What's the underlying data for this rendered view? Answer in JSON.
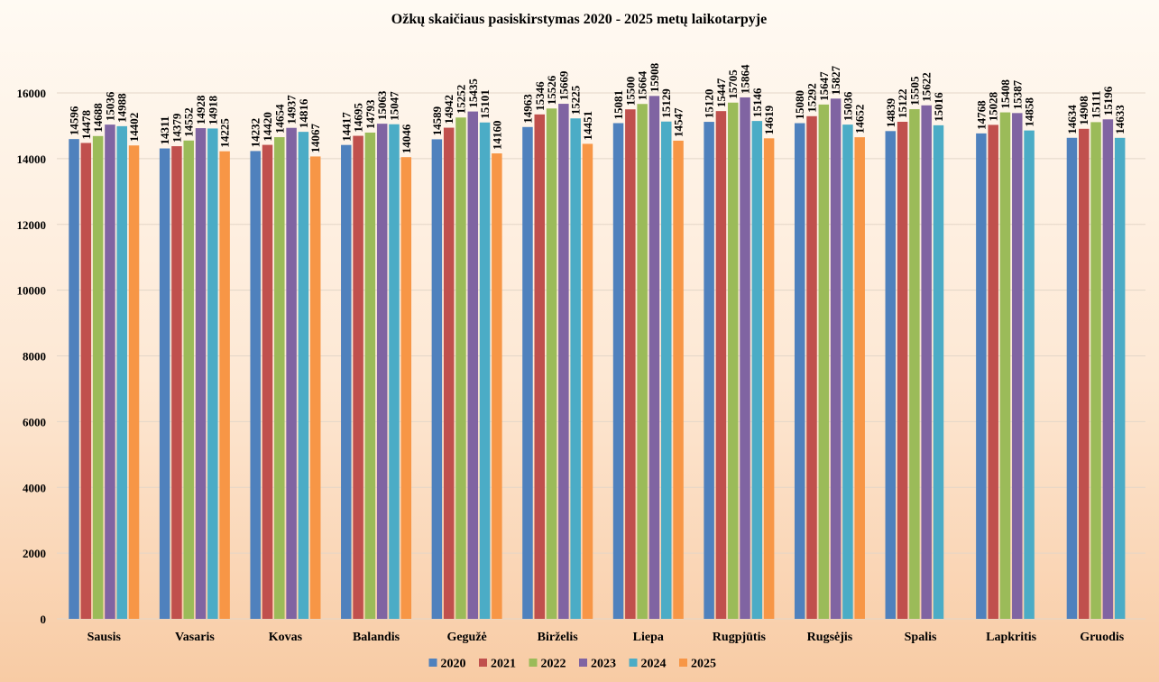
{
  "chart_data": {
    "type": "bar",
    "title": "Ožkų skaičiaus pasiskirstymas 2020 - 2025 metų laikotarpyje",
    "xlabel": "",
    "ylabel": "",
    "ylim": [
      0,
      16000
    ],
    "yticks": [
      0,
      2000,
      4000,
      6000,
      8000,
      10000,
      12000,
      14000,
      16000
    ],
    "grid": true,
    "legend_position": "bottom",
    "categories": [
      "Sausis",
      "Vasaris",
      "Kovas",
      "Balandis",
      "Gegužė",
      "Birželis",
      "Liepa",
      "Rugpjūtis",
      "Rugsėjis",
      "Spalis",
      "Lapkritis",
      "Gruodis"
    ],
    "series": [
      {
        "name": "2020",
        "color": "#4f81bd",
        "values": [
          14596,
          14311,
          14232,
          14417,
          14589,
          14963,
          15081,
          15120,
          15080,
          14839,
          14768,
          14634
        ]
      },
      {
        "name": "2021",
        "color": "#c0504d",
        "values": [
          14478,
          14379,
          14420,
          14695,
          14942,
          15346,
          15500,
          15447,
          15292,
          15122,
          15028,
          14908
        ]
      },
      {
        "name": "2022",
        "color": "#9bbb59",
        "values": [
          14688,
          14552,
          14654,
          14793,
          15252,
          15526,
          15664,
          15705,
          15647,
          15505,
          15408,
          15111
        ]
      },
      {
        "name": "2023",
        "color": "#8064a2",
        "values": [
          15036,
          14928,
          14937,
          15063,
          15435,
          15669,
          15908,
          15864,
          15827,
          15622,
          15387,
          15196
        ]
      },
      {
        "name": "2024",
        "color": "#4bacc6",
        "values": [
          14988,
          14918,
          14816,
          15047,
          15101,
          15225,
          15129,
          15146,
          15036,
          15016,
          14858,
          14633
        ]
      },
      {
        "name": "2025",
        "color": "#f79646",
        "values": [
          14402,
          14225,
          14067,
          14046,
          14160,
          14451,
          14547,
          14619,
          14652,
          null,
          null,
          null
        ]
      }
    ]
  }
}
